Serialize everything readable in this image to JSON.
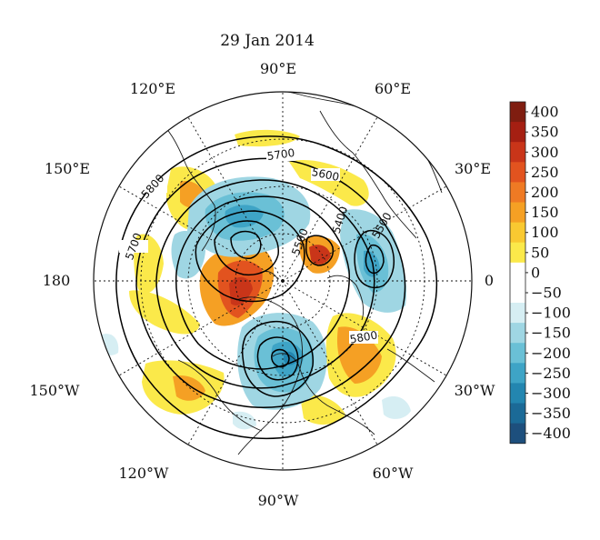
{
  "title": "29 Jan 2014",
  "longitude_labels": {
    "e90": "90°E",
    "e120": "120°E",
    "e60": "60°E",
    "e150": "150°E",
    "e30": "30°E",
    "d180": "180",
    "d0": "0",
    "w150": "150°W",
    "w30": "30°W",
    "w120": "120°W",
    "w60": "60°W",
    "w90": "90°W"
  },
  "contour_labels": [
    "5700",
    "5600",
    "5800",
    "5700",
    "5400",
    "5500",
    "5500",
    "5800"
  ],
  "colorbar": {
    "ticks": [
      "400",
      "350",
      "300",
      "250",
      "200",
      "150",
      "100",
      "50",
      "0",
      "−50",
      "−100",
      "−150",
      "−200",
      "−250",
      "−300",
      "−350",
      "−400"
    ],
    "colors": [
      "#7f1d10",
      "#a51f12",
      "#c93519",
      "#e2531f",
      "#ef7a24",
      "#f5a024",
      "#f9c931",
      "#fbe94a",
      "#ffffff",
      "#ffffff",
      "#d6eef3",
      "#9fd6e3",
      "#6ac0d6",
      "#3ea4c6",
      "#2386b0",
      "#1b6a97",
      "#1d4f7d"
    ]
  }
}
